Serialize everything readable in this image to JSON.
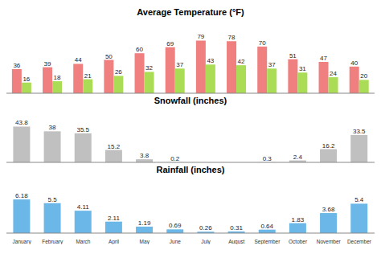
{
  "chart_data": [
    {
      "type": "bar",
      "title": "Average Temperature (°F)",
      "series": [
        {
          "color": "#F08080",
          "values": [
            36,
            39,
            44,
            50,
            60,
            69,
            79,
            78,
            70,
            51,
            47,
            40
          ]
        },
        {
          "color": "#AADD55",
          "values": [
            16,
            18,
            21,
            26,
            32,
            37,
            43,
            42,
            37,
            31,
            24,
            20
          ]
        }
      ],
      "ylim": [
        0,
        100
      ],
      "data_labels": true,
      "tick_labels": false
    },
    {
      "type": "bar",
      "title": "Snowfall (inches)",
      "values": [
        43.8,
        38,
        35.5,
        15.2,
        3.8,
        0.2,
        0,
        0,
        0.3,
        2.4,
        16.2,
        33.5
      ],
      "color": "#C0C0C0",
      "ylim": [
        0,
        58
      ],
      "data_labels": true,
      "tick_labels": false
    },
    {
      "type": "bar",
      "title": "Rainfall (inches)",
      "categories": [
        "January",
        "February",
        "March",
        "April",
        "May",
        "June",
        "July",
        "August",
        "September",
        "October",
        "November",
        "December"
      ],
      "values": [
        6.18,
        5.5,
        4.11,
        2.11,
        1.19,
        0.69,
        0.26,
        0.31,
        0.64,
        1.83,
        3.68,
        5.4
      ],
      "color": "#6BB8E8",
      "ylim": [
        0,
        9.0
      ],
      "data_labels": true,
      "tick_labels": "x"
    }
  ]
}
